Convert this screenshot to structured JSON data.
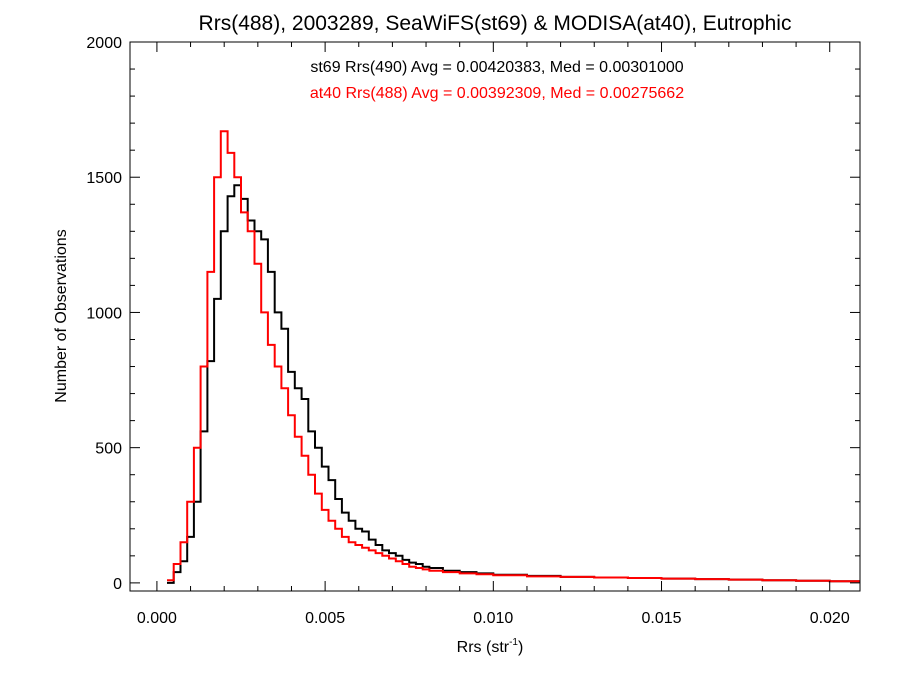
{
  "chart_data": {
    "type": "line",
    "step": true,
    "title": "Rrs(488), 2003289, SeaWiFS(st69) & MODISA(at40), Eutrophic",
    "xlabel": {
      "base": "Rrs (str",
      "sup": "-1",
      "tail": ")"
    },
    "ylabel": "Number of Observations",
    "xlim": [
      -0.0008,
      0.0209
    ],
    "ylim": [
      -30,
      2000
    ],
    "xticks": [
      0.0,
      0.005,
      0.01,
      0.015,
      0.02
    ],
    "xtick_labels": [
      "0.000",
      "0.005",
      "0.010",
      "0.015",
      "0.020"
    ],
    "yticks": [
      0,
      500,
      1000,
      1500,
      2000
    ],
    "ytick_labels": [
      "0",
      "500",
      "1000",
      "1500",
      "2000"
    ],
    "x_minor_step": 0.001,
    "y_minor_step": 100,
    "grid": false,
    "legend": [
      {
        "text": "st69 Rrs(490) Avg = 0.00420383, Med = 0.00301000",
        "color": "#000000"
      },
      {
        "text": "at40 Rrs(488) Avg = 0.00392309, Med = 0.00275662",
        "color": "#ff0000"
      }
    ],
    "series": [
      {
        "color": "#000000",
        "x": [
          0.0003,
          0.0005,
          0.0007,
          0.0009,
          0.0011,
          0.0013,
          0.0015,
          0.0017,
          0.0019,
          0.0021,
          0.0023,
          0.0025,
          0.0027,
          0.0029,
          0.0031,
          0.0033,
          0.0035,
          0.0037,
          0.0039,
          0.0041,
          0.0043,
          0.0045,
          0.0047,
          0.0049,
          0.0051,
          0.0053,
          0.0055,
          0.0057,
          0.0059,
          0.0061,
          0.0063,
          0.0065,
          0.0067,
          0.0069,
          0.0071,
          0.0073,
          0.0075,
          0.0077,
          0.0079,
          0.0081,
          0.0085,
          0.009,
          0.0095,
          0.01,
          0.011,
          0.012,
          0.013,
          0.014,
          0.015,
          0.016,
          0.017,
          0.018,
          0.019,
          0.02,
          0.0209
        ],
        "y": [
          0,
          40,
          80,
          170,
          300,
          560,
          820,
          1050,
          1300,
          1430,
          1470,
          1420,
          1340,
          1300,
          1270,
          1150,
          1000,
          940,
          780,
          720,
          680,
          560,
          500,
          430,
          380,
          310,
          260,
          230,
          200,
          190,
          160,
          140,
          120,
          110,
          100,
          85,
          75,
          70,
          60,
          55,
          45,
          40,
          35,
          30,
          26,
          22,
          20,
          18,
          16,
          14,
          12,
          10,
          8,
          6,
          4
        ]
      },
      {
        "color": "#ff0000",
        "x": [
          0.0003,
          0.0005,
          0.0007,
          0.0009,
          0.0011,
          0.0013,
          0.0015,
          0.0017,
          0.0019,
          0.0021,
          0.0023,
          0.0025,
          0.0027,
          0.0029,
          0.0031,
          0.0033,
          0.0035,
          0.0037,
          0.0039,
          0.0041,
          0.0043,
          0.0045,
          0.0047,
          0.0049,
          0.0051,
          0.0053,
          0.0055,
          0.0057,
          0.0059,
          0.0061,
          0.0063,
          0.0065,
          0.0067,
          0.0069,
          0.0071,
          0.0073,
          0.0075,
          0.0077,
          0.0079,
          0.0081,
          0.0085,
          0.009,
          0.0095,
          0.01,
          0.011,
          0.012,
          0.013,
          0.014,
          0.015,
          0.016,
          0.017,
          0.018,
          0.019,
          0.02,
          0.0209
        ],
        "y": [
          10,
          70,
          150,
          300,
          500,
          800,
          1150,
          1500,
          1670,
          1590,
          1500,
          1370,
          1300,
          1180,
          1000,
          880,
          800,
          720,
          620,
          540,
          470,
          400,
          330,
          270,
          230,
          200,
          170,
          150,
          140,
          130,
          120,
          110,
          100,
          90,
          80,
          70,
          60,
          55,
          50,
          45,
          40,
          35,
          32,
          28,
          24,
          22,
          20,
          18,
          16,
          14,
          12,
          10,
          8,
          6,
          4
        ]
      }
    ]
  }
}
